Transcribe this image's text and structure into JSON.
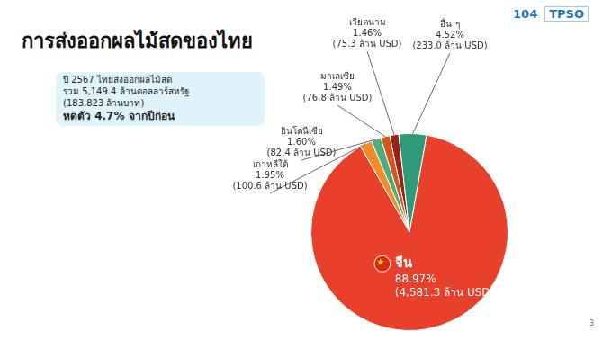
{
  "chart_data": {
    "type": "pie",
    "title": "การส่งออกผลไม้สดของไทย",
    "categories": [
      "จีน",
      "เกาหลีใต้",
      "อินโดนีเซีย",
      "มาเลเซีย",
      "เวียดนาม",
      "อื่น ๆ"
    ],
    "values": [
      88.97,
      1.95,
      1.6,
      1.49,
      1.46,
      4.52
    ],
    "value_labels": [
      "88.97%",
      "1.95%",
      "1.60%",
      "1.49%",
      "1.46%",
      "4.52%"
    ],
    "amount_labels": [
      "(4,581.3 ล้าน USD)",
      "(100.6 ล้าน USD)",
      "(82.4 ล้าน USD)",
      "(76.8 ล้าน USD)",
      "(75.3 ล้าน USD)",
      "(233.0 ล้าน USD)"
    ],
    "colors": [
      "#e8412b",
      "#f28c28",
      "#4cae7d",
      "#d4561c",
      "#9b2116",
      "#2f9a7a"
    ],
    "data_labels": true,
    "summary": [
      "ปี 2567 ไทยส่งออกผลไม้สด",
      "รวม 5,149.4 ล้านดอลลาร์สหรัฐ",
      "(183,823 ล้านบาท)",
      "หดตัว 4.7% จากปีก่อน"
    ],
    "logo": [
      "104",
      "TPSO"
    ],
    "page_number": "3"
  }
}
